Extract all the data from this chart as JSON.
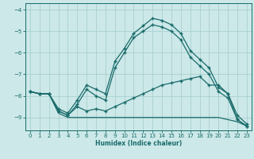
{
  "xlabel": "Humidex (Indice chaleur)",
  "bg_color": "#cce8e8",
  "grid_color": "#aacfcf",
  "line_color": "#1a6b6b",
  "xlim": [
    -0.5,
    23.5
  ],
  "ylim": [
    -9.6,
    -3.7
  ],
  "yticks": [
    -9,
    -8,
    -7,
    -6,
    -5,
    -4
  ],
  "xticks": [
    0,
    1,
    2,
    3,
    4,
    5,
    6,
    7,
    8,
    9,
    10,
    11,
    12,
    13,
    14,
    15,
    16,
    17,
    18,
    19,
    20,
    21,
    22,
    23
  ],
  "line1_y": [
    -7.8,
    -7.9,
    -7.9,
    -8.6,
    -8.8,
    -8.2,
    -7.5,
    -7.7,
    -7.9,
    -6.4,
    -5.8,
    -5.1,
    -4.75,
    -4.4,
    -4.5,
    -4.7,
    -5.1,
    -5.9,
    -6.3,
    -6.7,
    -7.6,
    -7.9,
    -8.9,
    -9.3
  ],
  "line2_y": [
    -7.8,
    -7.9,
    -7.9,
    -8.7,
    -8.9,
    -8.4,
    -7.7,
    -8.0,
    -8.2,
    -6.7,
    -6.0,
    -5.3,
    -5.0,
    -4.7,
    -4.8,
    -5.0,
    -5.4,
    -6.2,
    -6.6,
    -7.0,
    -7.8,
    -8.1,
    -9.1,
    -9.4
  ],
  "line3_y": [
    -7.8,
    -7.9,
    -7.9,
    -8.7,
    -8.9,
    -8.5,
    -8.7,
    -8.6,
    -8.7,
    -8.5,
    -8.3,
    -8.1,
    -7.9,
    -7.7,
    -7.5,
    -7.4,
    -7.3,
    -7.2,
    -7.1,
    -7.5,
    -7.5,
    -7.9,
    -9.1,
    -9.4
  ],
  "line4_y": [
    -7.8,
    -7.9,
    -7.9,
    -8.8,
    -9.0,
    -9.0,
    -9.0,
    -9.0,
    -9.0,
    -9.0,
    -9.0,
    -9.0,
    -9.0,
    -9.0,
    -9.0,
    -9.0,
    -9.0,
    -9.0,
    -9.0,
    -9.0,
    -9.0,
    -9.1,
    -9.2,
    -9.4
  ]
}
